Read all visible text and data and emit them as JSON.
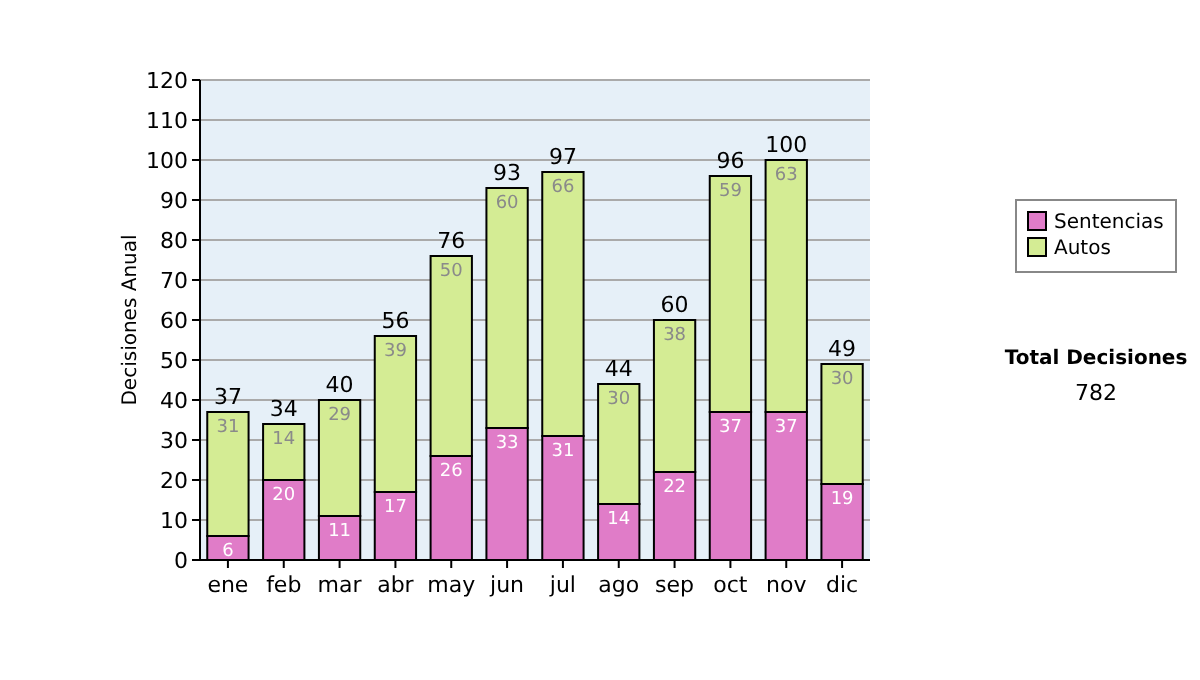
{
  "chart_data": {
    "type": "bar",
    "stacked": true,
    "ylabel": "Decisiones Anual",
    "categories": [
      "ene",
      "feb",
      "mar",
      "abr",
      "may",
      "jun",
      "jul",
      "ago",
      "sep",
      "oct",
      "nov",
      "dic"
    ],
    "series": [
      {
        "name": "Sentencias",
        "color": "#e07cc8",
        "values": [
          6,
          20,
          11,
          17,
          26,
          33,
          31,
          14,
          22,
          37,
          37,
          19
        ]
      },
      {
        "name": "Autos",
        "color": "#d4ec94",
        "values": [
          31,
          14,
          29,
          39,
          50,
          60,
          66,
          30,
          38,
          59,
          63,
          30
        ]
      }
    ],
    "totals": [
      "37",
      "34",
      "40",
      "56",
      "76",
      "93",
      "97",
      "44",
      "60",
      "96",
      "100",
      "49"
    ],
    "data_labels": true,
    "ylim": [
      0,
      120
    ],
    "yticks": [
      0,
      10,
      20,
      30,
      40,
      50,
      60,
      70,
      80,
      90,
      100,
      110,
      120
    ],
    "grid": "y",
    "legend": "right",
    "annotations": [
      "Total Decisiones",
      "782"
    ]
  }
}
